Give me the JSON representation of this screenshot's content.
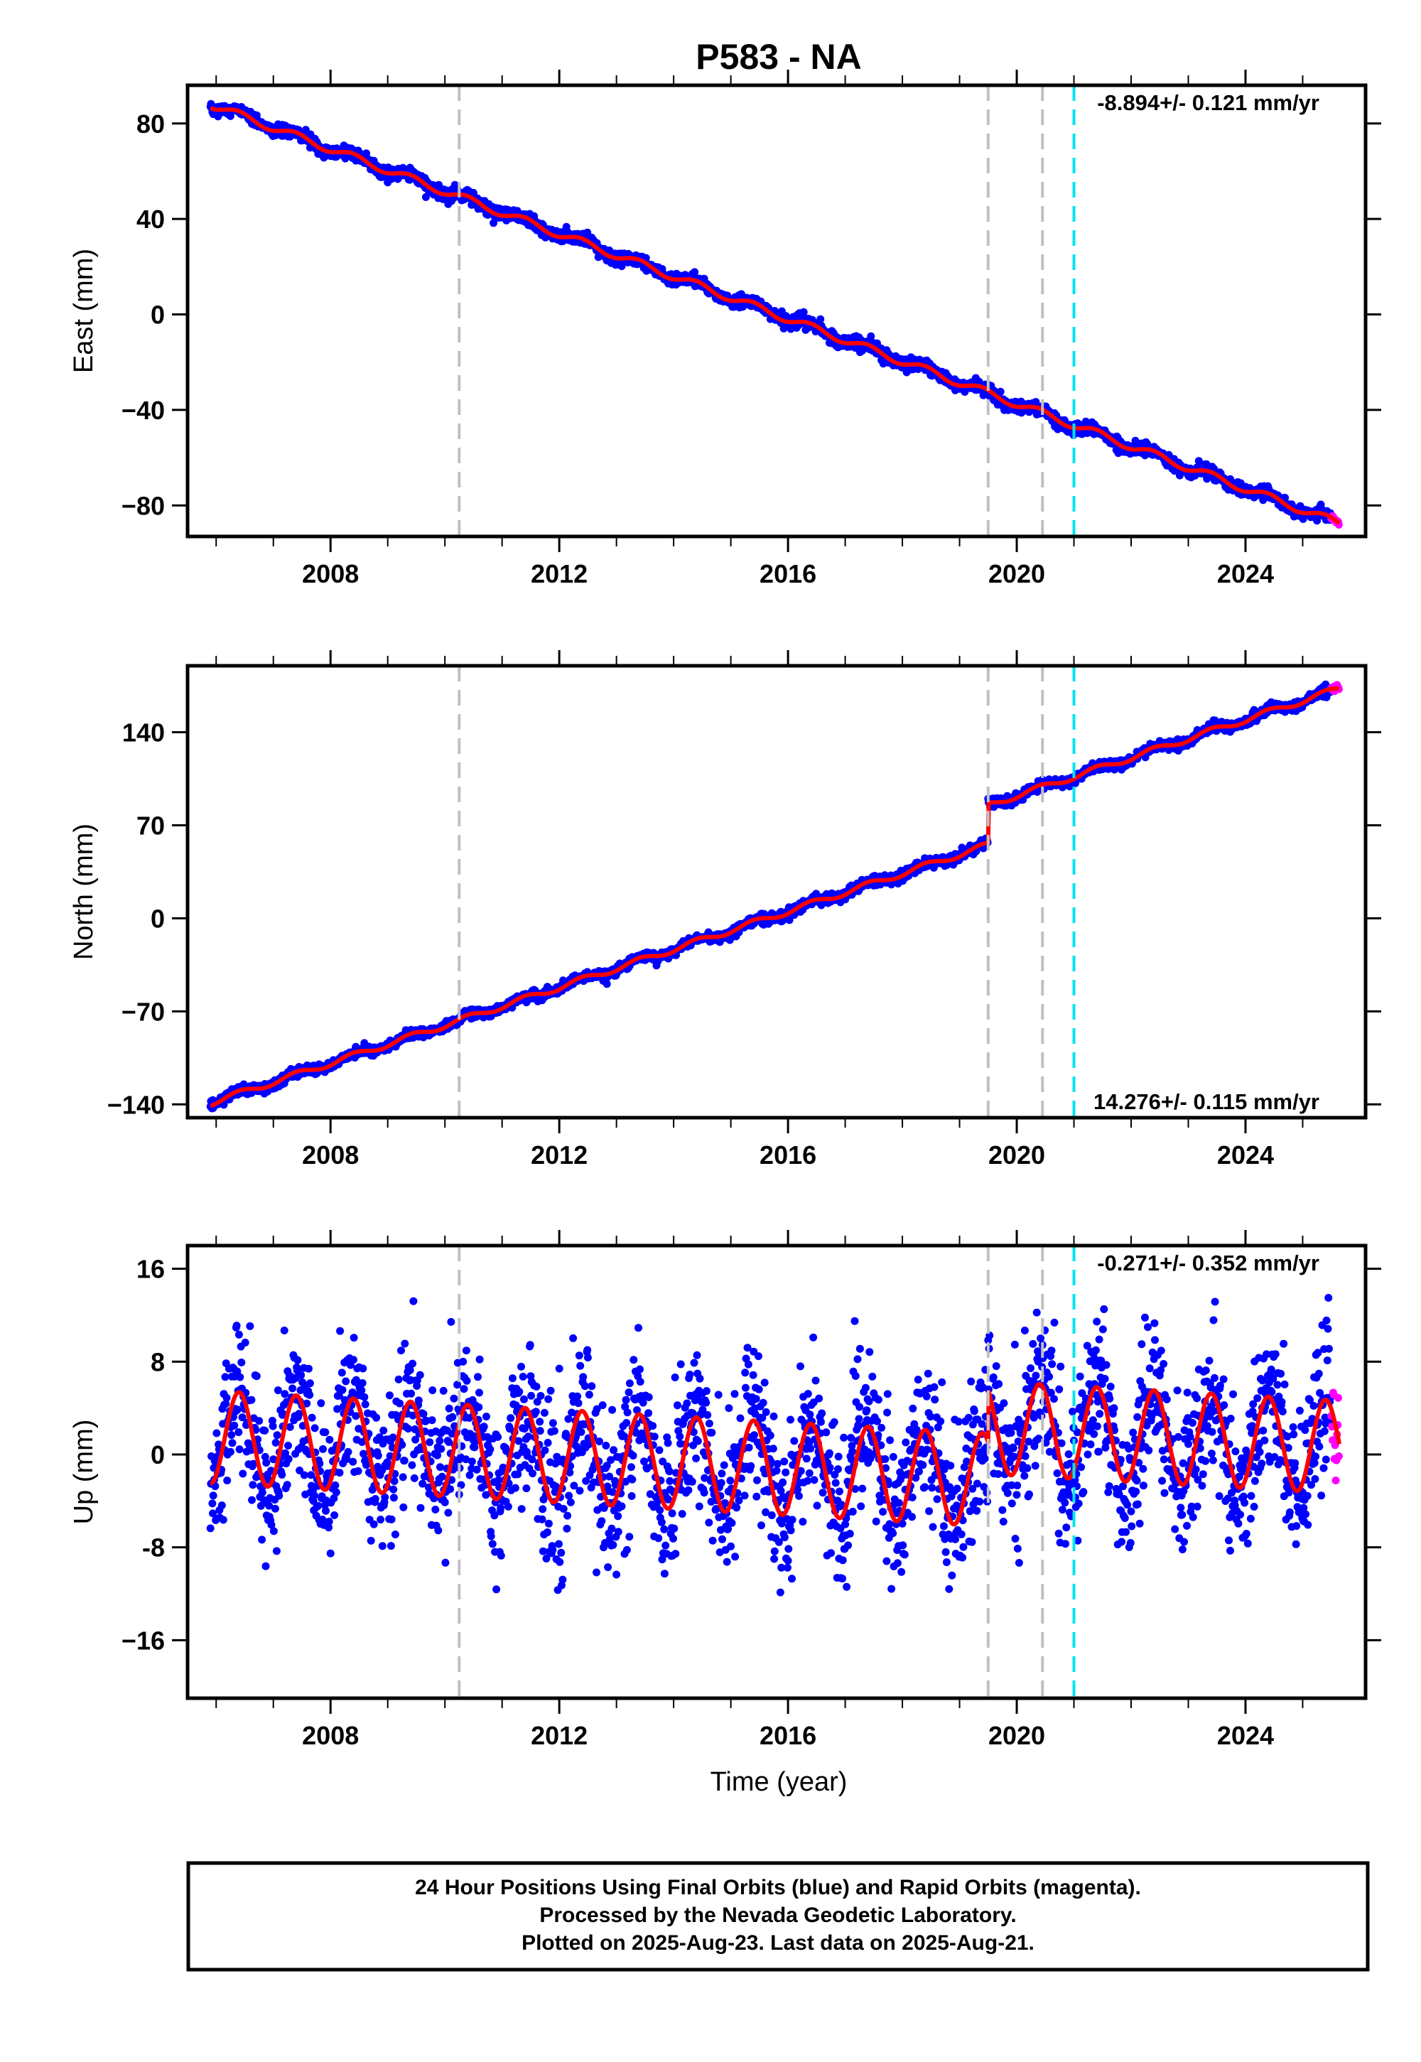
{
  "chart_data": {
    "type": "scatter",
    "title": "P583 - NA",
    "xlabel": "Time (year)",
    "xlim": [
      2005.5,
      2026.1
    ],
    "x_ticks": [
      2008,
      2012,
      2016,
      2020,
      2024
    ],
    "x_tick_labels": [
      "2008",
      "2012",
      "2016",
      "2020",
      "2024"
    ],
    "data_start": 2005.9,
    "data_end": 2025.64,
    "rapid_start": 2025.5,
    "gray_markers": [
      2010.25,
      2019.5,
      2020.45
    ],
    "cyan_marker": 2021.0,
    "colors": {
      "final": "#0000ff",
      "rapid": "#ff00ff",
      "model": "#ff0000",
      "equipment": "#c0c0c0",
      "event": "#00e5ee"
    },
    "panels": [
      {
        "name": "east",
        "ylabel": "East (mm)",
        "ylim": [
          -93,
          96
        ],
        "y_ticks": [
          80,
          40,
          0,
          -40,
          -80
        ],
        "y_tick_labels": [
          "80",
          "40",
          "0",
          "−40",
          "−80"
        ],
        "rate_text": "-8.894+/- 0.121 mm/yr",
        "rate_position": "top-right",
        "rate_mm_yr": -8.894,
        "value_at_start": 88,
        "offsets": [],
        "annual_amplitude": 1.6,
        "noise_mm": 1.3,
        "grid": false
      },
      {
        "name": "north",
        "ylabel": "North (mm)",
        "ylim": [
          -150,
          190
        ],
        "y_ticks": [
          140,
          70,
          0,
          -70,
          -140
        ],
        "y_tick_labels": [
          "140",
          "70",
          "0",
          "−70",
          "−140"
        ],
        "rate_text": "14.276+/- 0.115 mm/yr",
        "rate_position": "bottom-right",
        "rate_mm_yr": 14.276,
        "value_at_start": -139,
        "offsets": [
          {
            "year": 2019.5,
            "mm": 30
          }
        ],
        "annual_amplitude": 2.2,
        "noise_mm": 1.8,
        "grid": false
      },
      {
        "name": "up",
        "ylabel": "Up (mm)",
        "ylim": [
          -21,
          18
        ],
        "y_ticks": [
          16,
          8,
          0,
          -8,
          -16
        ],
        "y_tick_labels": [
          "16",
          "8",
          "0",
          "-8",
          "−16"
        ],
        "rate_text": "-0.271+/- 0.352 mm/yr",
        "rate_position": "top-right",
        "rate_mm_yr": -0.271,
        "value_at_start": 1.5,
        "offsets": [
          {
            "year": 2019.5,
            "mm": 4.5
          }
        ],
        "annual_amplitude": 4.0,
        "noise_mm": 3.2,
        "grid": false
      }
    ],
    "footer": [
      "24 Hour Positions Using Final Orbits (blue) and Rapid Orbits (magenta).",
      "Processed by the Nevada Geodetic Laboratory.",
      "Plotted on 2025-Aug-23. Last data on 2025-Aug-21."
    ]
  }
}
